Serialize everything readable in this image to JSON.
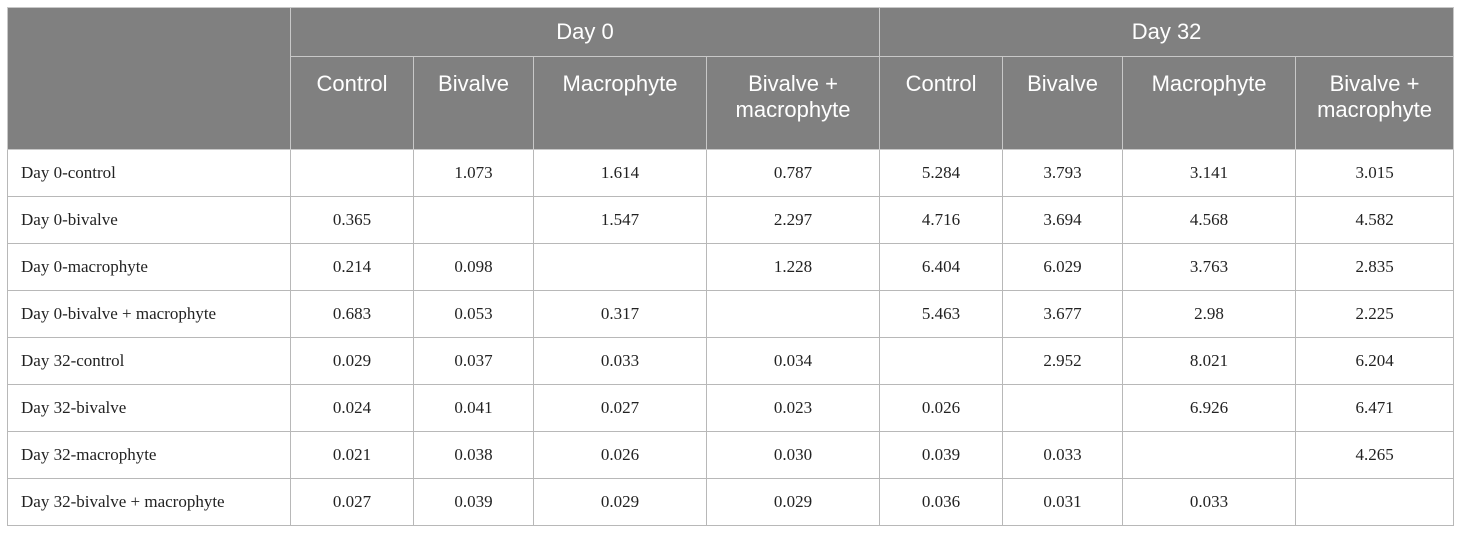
{
  "groups": [
    "Day 0",
    "Day 32"
  ],
  "columns": [
    "Control",
    "Bivalve",
    "Macrophyte",
    "Bivalve + macrophyte",
    "Control",
    "Bivalve",
    "Macrophyte",
    "Bivalve + macrophyte"
  ],
  "rows": [
    {
      "label": "Day 0-control",
      "cells": [
        "",
        "1.073",
        "1.614",
        "0.787",
        "5.284",
        "3.793",
        "3.141",
        "3.015"
      ]
    },
    {
      "label": "Day 0-bivalve",
      "cells": [
        "0.365",
        "",
        "1.547",
        "2.297",
        "4.716",
        "3.694",
        "4.568",
        "4.582"
      ]
    },
    {
      "label": "Day 0-macrophyte",
      "cells": [
        "0.214",
        "0.098",
        "",
        "1.228",
        "6.404",
        "6.029",
        "3.763",
        "2.835"
      ]
    },
    {
      "label": "Day 0-bivalve + macrophyte",
      "cells": [
        "0.683",
        "0.053",
        "0.317",
        "",
        "5.463",
        "3.677",
        "2.98",
        "2.225"
      ]
    },
    {
      "label": "Day 32-control",
      "cells": [
        "0.029",
        "0.037",
        "0.033",
        "0.034",
        "",
        "2.952",
        "8.021",
        "6.204"
      ]
    },
    {
      "label": "Day 32-bivalve",
      "cells": [
        "0.024",
        "0.041",
        "0.027",
        "0.023",
        "0.026",
        "",
        "6.926",
        "6.471"
      ]
    },
    {
      "label": "Day 32-macrophyte",
      "cells": [
        "0.021",
        "0.038",
        "0.026",
        "0.030",
        "0.039",
        "0.033",
        "",
        "4.265"
      ]
    },
    {
      "label": "Day 32-bivalve + macrophyte",
      "cells": [
        "0.027",
        "0.039",
        "0.029",
        "0.029",
        "0.036",
        "0.031",
        "0.033",
        ""
      ]
    }
  ]
}
